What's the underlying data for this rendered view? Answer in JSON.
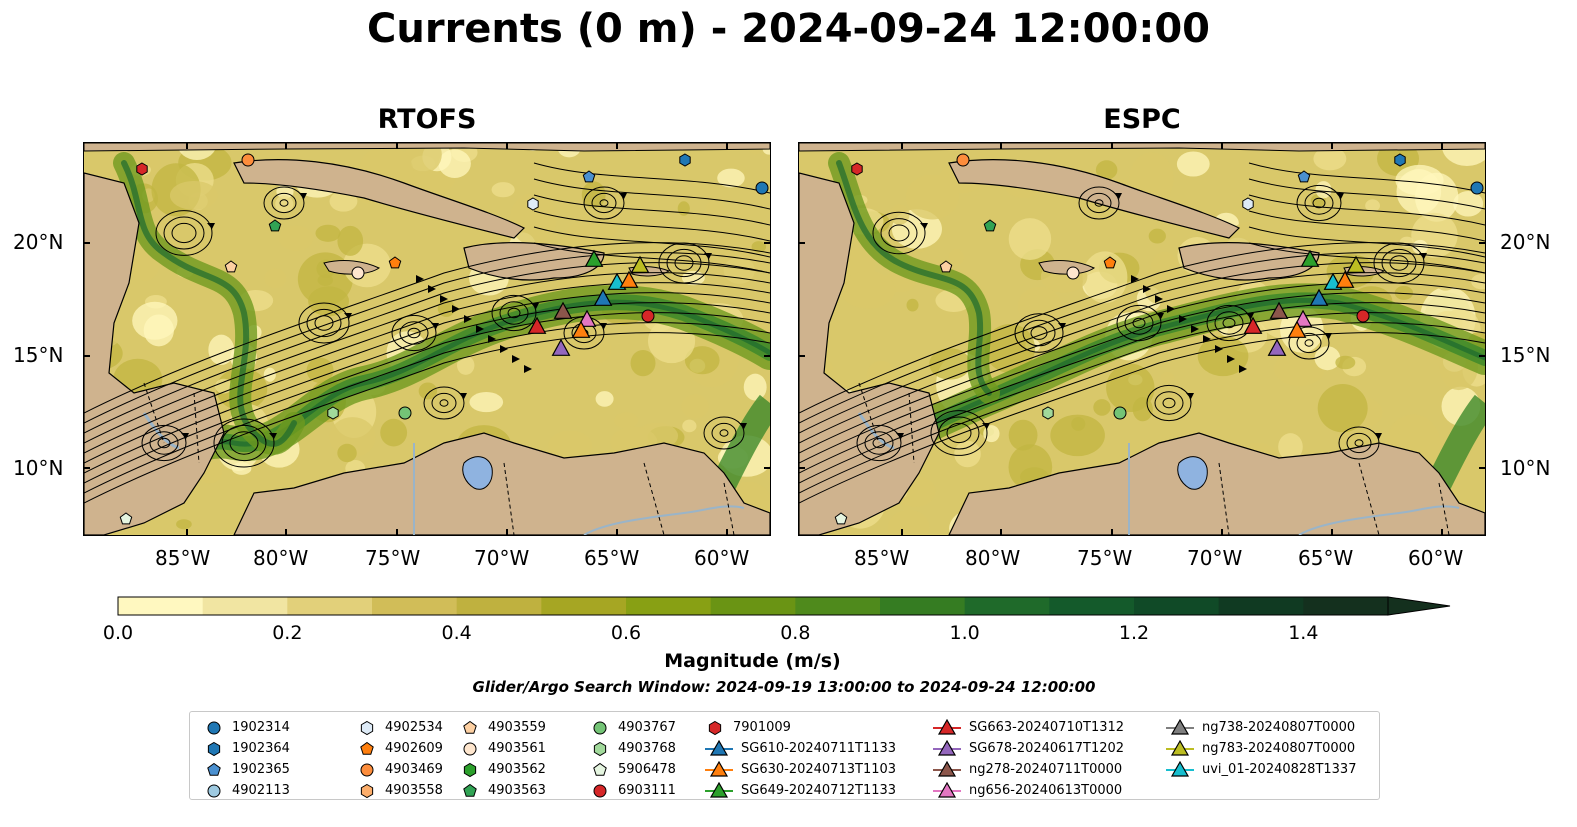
{
  "title": "Currents (0 m) - 2024-09-24 12:00:00",
  "panels": [
    {
      "title": "RTOFS"
    },
    {
      "title": "ESPC"
    }
  ],
  "map": {
    "lat_labels": [
      "20°N",
      "15°N",
      "10°N"
    ],
    "lon_labels": [
      "85°W",
      "80°W",
      "75°W",
      "70°W",
      "65°W",
      "60°W"
    ],
    "ocean_colors": [
      "#fff7bc",
      "#eedf8e",
      "#d9c86a",
      "#c2b642",
      "#9aa82a",
      "#6f9a1f",
      "#3e8a2a",
      "#1d6a2f",
      "#123f22"
    ],
    "land_color": "#cfb38e",
    "lake_color": "#8fb3e0",
    "river_color": "#9ab4c8"
  },
  "colorbar": {
    "label": "Magnitude (m/s)",
    "ticks": [
      "0.0",
      "0.2",
      "0.4",
      "0.6",
      "0.8",
      "1.0",
      "1.2",
      "1.4"
    ],
    "min": 0.0,
    "max": 1.5,
    "step": 0.1,
    "colors": [
      "#fff8c0",
      "#f1e5a2",
      "#e2d07a",
      "#d1bd58",
      "#bfb13f",
      "#a6a623",
      "#88a014",
      "#6a9414",
      "#4f8a1c",
      "#357c22",
      "#1f6a2a",
      "#145a2b",
      "#104a27",
      "#103a22",
      "#14301e"
    ]
  },
  "search_window": "Glider/Argo Search Window: 2024-09-19 13:00:00 to 2024-09-24 12:00:00",
  "legend": {
    "columns": [
      [
        {
          "label": "1902314",
          "marker": "circle",
          "color": "#1f77b4"
        },
        {
          "label": "1902364",
          "marker": "hexagon",
          "color": "#1f77b4"
        },
        {
          "label": "1902365",
          "marker": "pentagon",
          "color": "#4a90d0"
        },
        {
          "label": "4902113",
          "marker": "circle",
          "color": "#9ecae1"
        }
      ],
      [
        {
          "label": "4902534",
          "marker": "hexagon",
          "color": "#deebf7"
        },
        {
          "label": "4902609",
          "marker": "pentagon",
          "color": "#ff7f0e"
        },
        {
          "label": "4903469",
          "marker": "circle",
          "color": "#fd8d3c"
        },
        {
          "label": "4903558",
          "marker": "hexagon",
          "color": "#fdae6b"
        }
      ],
      [
        {
          "label": "4903559",
          "marker": "pentagon",
          "color": "#fdd0a2"
        },
        {
          "label": "4903561",
          "marker": "circle",
          "color": "#fee6ce"
        },
        {
          "label": "4903562",
          "marker": "hexagon",
          "color": "#2ca02c"
        },
        {
          "label": "4903563",
          "marker": "pentagon",
          "color": "#31a354"
        }
      ],
      [
        {
          "label": "4903767",
          "marker": "circle",
          "color": "#74c476"
        },
        {
          "label": "4903768",
          "marker": "hexagon",
          "color": "#a1d99b"
        },
        {
          "label": "5906478",
          "marker": "pentagon",
          "color": "#e5f5e0"
        },
        {
          "label": "6903111",
          "marker": "circle",
          "color": "#d62728"
        }
      ],
      [
        {
          "label": "7901009",
          "marker": "hexagon",
          "color": "#d62728"
        },
        {
          "label": "SG610-20240711T1133",
          "marker": "triangle",
          "color": "#1f77b4"
        },
        {
          "label": "SG630-20240713T1103",
          "marker": "triangle",
          "color": "#ff7f0e"
        },
        {
          "label": "SG649-20240712T1133",
          "marker": "triangle",
          "color": "#2ca02c"
        }
      ],
      [
        {
          "label": "SG663-20240710T1312",
          "marker": "triangle",
          "color": "#d62728"
        },
        {
          "label": "SG678-20240617T1202",
          "marker": "triangle",
          "color": "#9467bd"
        },
        {
          "label": "ng278-20240711T0000",
          "marker": "triangle",
          "color": "#8c564b"
        },
        {
          "label": "ng656-20240613T0000",
          "marker": "triangle",
          "color": "#e377c2"
        }
      ],
      [
        {
          "label": "ng738-20240807T0000",
          "marker": "triangle",
          "color": "#7f7f7f"
        },
        {
          "label": "ng783-20240807T0000",
          "marker": "triangle",
          "color": "#bcbd22"
        },
        {
          "label": "uvi_01-20240828T1337",
          "marker": "triangle",
          "color": "#17becf"
        }
      ]
    ]
  }
}
